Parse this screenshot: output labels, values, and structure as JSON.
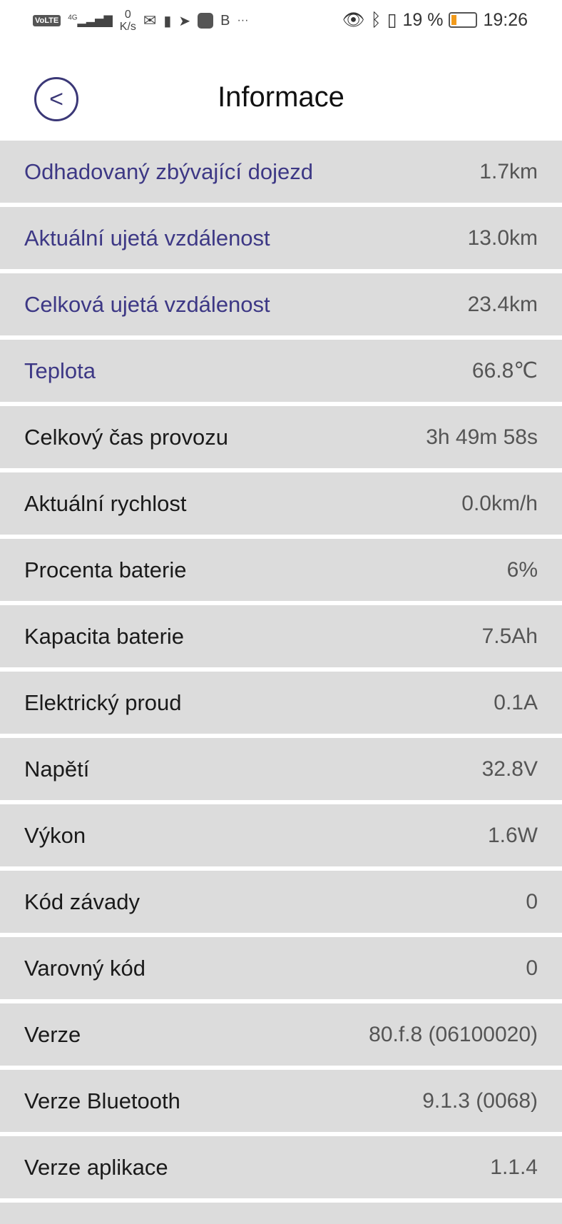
{
  "status_bar": {
    "network": "4G",
    "volte": "VoLTE",
    "speed_value": "0",
    "speed_unit": "K/s",
    "battery_percent": "19 %",
    "battery_level": 0.19,
    "time": "19:26",
    "battery_fill_color": "#f19a1b"
  },
  "header": {
    "title": "Informace",
    "back_icon": "chevron-left-circle"
  },
  "colors": {
    "highlight_label": "#3d3885",
    "row_bg": "#dcdcdc"
  },
  "rows": [
    {
      "label": "Odhadovaný zbývající dojezd",
      "value": "1.7km"
    },
    {
      "label": "Aktuální ujetá vzdálenost",
      "value": "13.0km"
    },
    {
      "label": "Celková ujetá vzdálenost",
      "value": "23.4km"
    },
    {
      "label": "Teplota",
      "value": "66.8℃"
    },
    {
      "label": "Celkový čas provozu",
      "value": "3h 49m 58s"
    },
    {
      "label": "Aktuální rychlost",
      "value": "0.0km/h"
    },
    {
      "label": "Procenta baterie",
      "value": "6%"
    },
    {
      "label": "Kapacita baterie",
      "value": "7.5Ah"
    },
    {
      "label": "Elektrický proud",
      "value": "0.1A"
    },
    {
      "label": "Napětí",
      "value": "32.8V"
    },
    {
      "label": "Výkon",
      "value": "1.6W"
    },
    {
      "label": "Kód závady",
      "value": "0"
    },
    {
      "label": "Varovný kód",
      "value": "0"
    },
    {
      "label": "Verze",
      "value": "80.f.8 (06100020)"
    },
    {
      "label": "Verze Bluetooth",
      "value": "9.1.3 (0068)"
    },
    {
      "label": "Verze aplikace",
      "value": "1.1.4"
    }
  ]
}
